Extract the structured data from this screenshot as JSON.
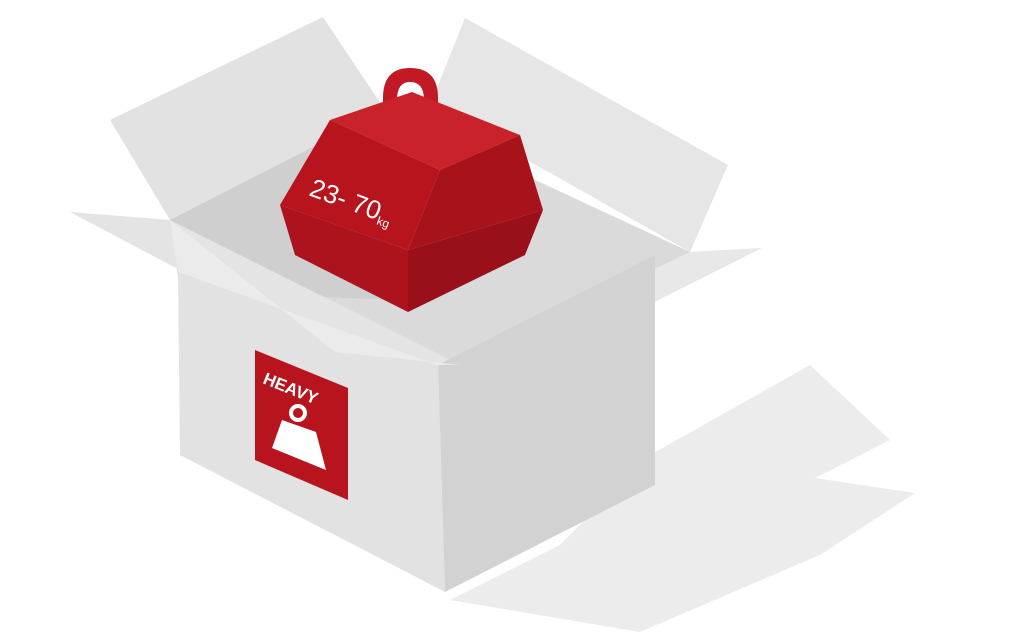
{
  "weight": {
    "range": "23- 70",
    "unit": "kg"
  },
  "label": {
    "text": "HEAVY",
    "icon": "weight-icon"
  },
  "colors": {
    "weight_red": "#b8141e",
    "weight_red_dark": "#9a0f17",
    "weight_red_light": "#c92a2a",
    "box_light": "#e6e6e6",
    "box_mid": "#d6d6d6",
    "box_dark": "#c9c9c9",
    "shadow": "#ececec"
  }
}
